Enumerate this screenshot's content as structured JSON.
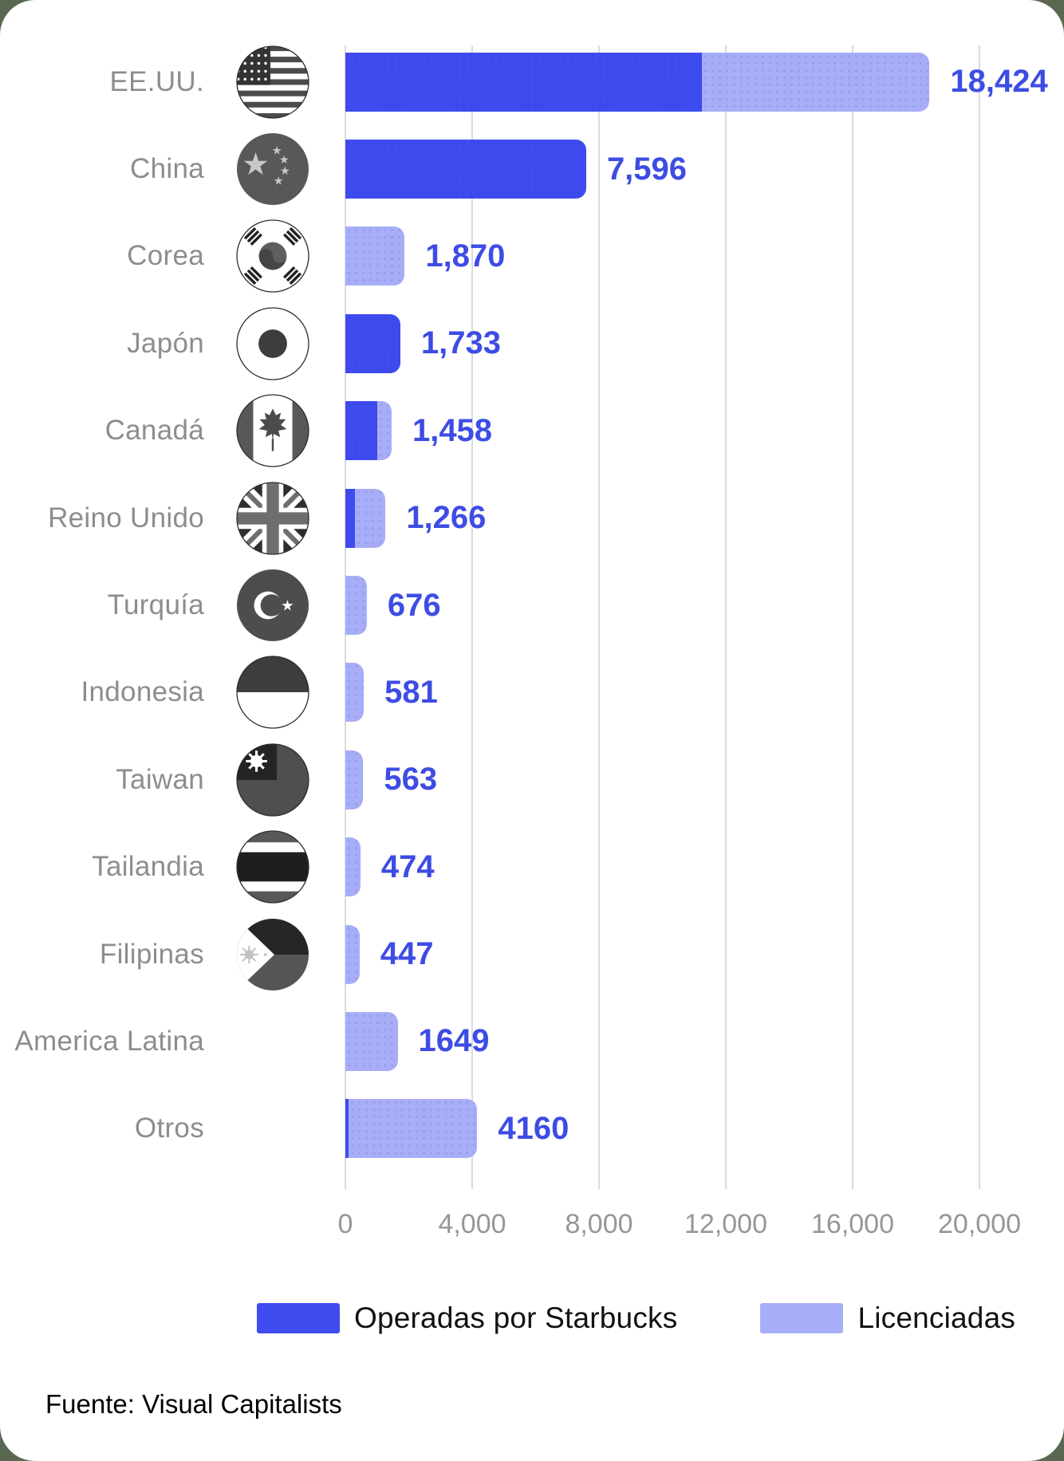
{
  "chart_data": {
    "type": "bar",
    "orientation": "horizontal",
    "categories": [
      "EE.UU.",
      "China",
      "Corea",
      "Japón",
      "Canadá",
      "Reino Unido",
      "Turquía",
      "Indonesia",
      "Taiwan",
      "Tailandia",
      "Filipinas",
      "America Latina",
      "Otros"
    ],
    "totals": [
      18424,
      7596,
      1870,
      1733,
      1458,
      1266,
      676,
      581,
      563,
      474,
      447,
      1649,
      4160
    ],
    "value_labels": [
      "18,424",
      "7,596",
      "1,870",
      "1,733",
      "1,458",
      "1,266",
      "676",
      "581",
      "563",
      "474",
      "447",
      "1649",
      "4160"
    ],
    "series": [
      {
        "name": "Operadas por Starbucks",
        "color": "#3e4bef",
        "values": [
          11250,
          7596,
          0,
          1733,
          1000,
          300,
          0,
          0,
          0,
          0,
          0,
          0,
          100
        ]
      },
      {
        "name": "Licenciadas",
        "color": "#a7aef7",
        "values": [
          7174,
          0,
          1870,
          0,
          458,
          966,
          676,
          581,
          563,
          474,
          447,
          1649,
          4060
        ]
      }
    ],
    "flags": [
      "usa",
      "china",
      "korea",
      "japan",
      "canada",
      "uk",
      "turkey",
      "indonesia",
      "taiwan",
      "thailand",
      "philippines",
      null,
      null
    ],
    "x_ticks": [
      "0",
      "4,000",
      "8,000",
      "12,000",
      "16,000",
      "20,000"
    ],
    "xlim": [
      0,
      20000
    ],
    "grid": true,
    "legend_position": "bottom"
  },
  "legend": {
    "items": [
      {
        "label": "Operadas por Starbucks",
        "color": "#3e4bef"
      },
      {
        "label": "Licenciadas",
        "color": "#a7aef7"
      }
    ]
  },
  "source": {
    "text": "Fuente: Visual Capitalists"
  },
  "colors": {
    "value_label": "#3d4ce4",
    "country_label": "#8d8d8d",
    "tick_label": "#969696",
    "gridline": "#dbdbdb",
    "card_background": "#ffffff",
    "page_background": "#5a6852",
    "legend_text": "#111111"
  }
}
